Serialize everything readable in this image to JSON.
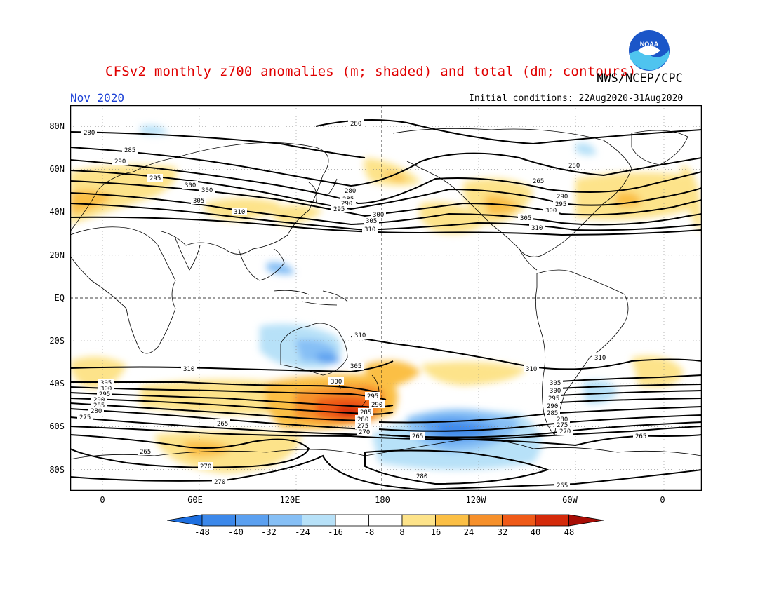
{
  "title": "CFSv2 monthly z700 anomalies (m; shaded) and total (dm; contours)",
  "agency": "NWS/NCEP/CPC",
  "logo_text": "NOAA",
  "month": "Nov 2020",
  "initial_conditions": "Initial conditions: 22Aug2020-31Aug2020",
  "lat_labels": [
    "80N",
    "60N",
    "40N",
    "20N",
    "EQ",
    "20S",
    "40S",
    "60S",
    "80S"
  ],
  "lon_labels": [
    "0",
    "60E",
    "120E",
    "180",
    "120W",
    "60W",
    "0"
  ],
  "colorbar": {
    "labels": [
      "-48",
      "-40",
      "-32",
      "-24",
      "-16",
      "-8",
      "8",
      "16",
      "24",
      "32",
      "40",
      "48"
    ],
    "colors": [
      "#1d6fe0",
      "#3c88ea",
      "#5ba0f0",
      "#86bff5",
      "#b7e1f8",
      "#ffffff",
      "#fde38a",
      "#fbbf45",
      "#f6902b",
      "#ef5a18",
      "#d42a0a",
      "#a80d06"
    ],
    "units": "m"
  },
  "contour_labels": [
    "280",
    "285",
    "290",
    "295",
    "300",
    "305",
    "310",
    "265",
    "270",
    "275"
  ],
  "colors": {
    "title": "#e00000",
    "month": "#1a3fd6",
    "warm": "#f6902b",
    "cool": "#5ba0f0"
  }
}
